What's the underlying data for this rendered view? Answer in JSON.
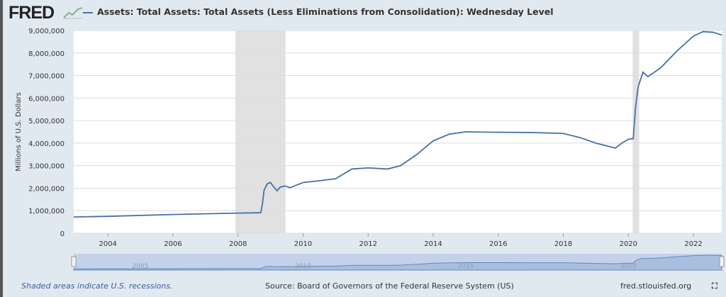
{
  "header": {
    "logo": "FRED",
    "series_title": "Assets: Total Assets: Total Assets (Less Eliminations from Consolidation): Wednesday Level"
  },
  "footer": {
    "recession_note": "Shaded areas indicate U.S. recessions.",
    "source": "Source: Board of Governors of the Federal Reserve System (US)",
    "site": "fred.stlouisfed.org"
  },
  "colors": {
    "line": "#4572a7",
    "recession": "#e1e1e1",
    "navigator": "#a9bfdf"
  },
  "chart_data": {
    "type": "line",
    "title": "Assets: Total Assets: Total Assets (Less Eliminations from Consolidation): Wednesday Level",
    "ylabel": "Millions of U.S. Dollars",
    "xlabel": "",
    "xlim": [
      2002.95,
      2022.87
    ],
    "ylim": [
      0,
      9000000
    ],
    "yticks": [
      0,
      1000000,
      2000000,
      3000000,
      4000000,
      5000000,
      6000000,
      7000000,
      8000000,
      9000000
    ],
    "ytick_labels": [
      "0",
      "1,000,000",
      "2,000,000",
      "3,000,000",
      "4,000,000",
      "5,000,000",
      "6,000,000",
      "7,000,000",
      "8,000,000",
      "9,000,000"
    ],
    "xticks": [
      2004,
      2006,
      2008,
      2010,
      2012,
      2014,
      2016,
      2018,
      2020,
      2022
    ],
    "navigator_ticks": [
      2005,
      2010,
      2015,
      2020
    ],
    "recessions": [
      [
        2007.92,
        2009.46
      ],
      [
        2020.13,
        2020.33
      ]
    ],
    "series": [
      {
        "name": "Total Assets",
        "x": [
          2002.95,
          2004,
          2006,
          2007.9,
          2008.7,
          2008.75,
          2008.8,
          2008.9,
          2009.0,
          2009.1,
          2009.2,
          2009.3,
          2009.45,
          2009.6,
          2010,
          2010.5,
          2011,
          2011.5,
          2012,
          2012.6,
          2013,
          2013.5,
          2014,
          2014.5,
          2015,
          2016,
          2017,
          2018,
          2018.5,
          2019,
          2019.6,
          2019.8,
          2020.0,
          2020.15,
          2020.22,
          2020.3,
          2020.45,
          2020.6,
          2021,
          2021.5,
          2022,
          2022.3,
          2022.6,
          2022.87
        ],
        "y": [
          720000,
          750000,
          830000,
          890000,
          910000,
          1300000,
          1900000,
          2200000,
          2250000,
          2050000,
          1880000,
          2050000,
          2100000,
          2020000,
          2250000,
          2330000,
          2420000,
          2850000,
          2900000,
          2850000,
          3000000,
          3500000,
          4100000,
          4400000,
          4500000,
          4480000,
          4470000,
          4430000,
          4250000,
          4000000,
          3780000,
          4000000,
          4170000,
          4200000,
          5600000,
          6500000,
          7150000,
          6950000,
          7350000,
          8100000,
          8750000,
          8950000,
          8920000,
          8800000
        ]
      }
    ]
  }
}
